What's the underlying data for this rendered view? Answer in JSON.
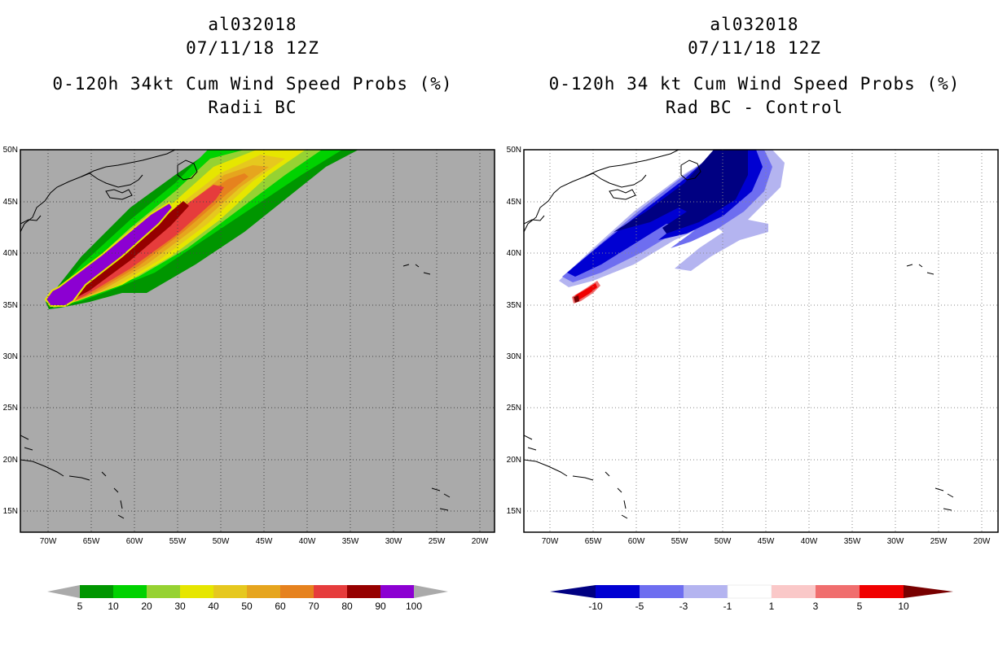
{
  "left": {
    "id": "al032018",
    "date": "07/11/18 12Z",
    "product": "0-120h 34kt Cum Wind Speed Probs (%)",
    "subtitle": "Radii BC",
    "colorbar": {
      "labels": [
        "5",
        "10",
        "20",
        "30",
        "40",
        "50",
        "60",
        "70",
        "80",
        "90",
        "100"
      ],
      "colors": [
        "#009600",
        "#00d200",
        "#96d232",
        "#e6e600",
        "#e6c81e",
        "#e6a51e",
        "#e6821e",
        "#e63c3c",
        "#960000",
        "#8c00d2"
      ]
    }
  },
  "right": {
    "id": "al032018",
    "date": "07/11/18 12Z",
    "product": "0-120h 34 kt Cum Wind Speed Probs (%)",
    "subtitle": "Rad BC - Control",
    "colorbar": {
      "labels": [
        "-10",
        "-5",
        "-3",
        "-1",
        "1",
        "3",
        "5",
        "10"
      ],
      "colors": [
        "#0000d2",
        "#6e6ef0",
        "#b4b4f0",
        "#ffffff",
        "#fac8c8",
        "#f06e6e",
        "#f00000"
      ],
      "under_color": "#000082",
      "over_color": "#780000"
    }
  },
  "axes": {
    "lat_labels": [
      "50N",
      "45N",
      "40N",
      "35N",
      "30N",
      "25N",
      "20N",
      "15N"
    ],
    "lon_labels": [
      "70W",
      "65W",
      "60W",
      "55W",
      "50W",
      "45W",
      "40W",
      "35W",
      "30W",
      "25W",
      "20W"
    ]
  },
  "colors": {
    "ocean_left": "#aaaaaa",
    "ocean_right": "#ffffff",
    "grid": "#444444"
  }
}
